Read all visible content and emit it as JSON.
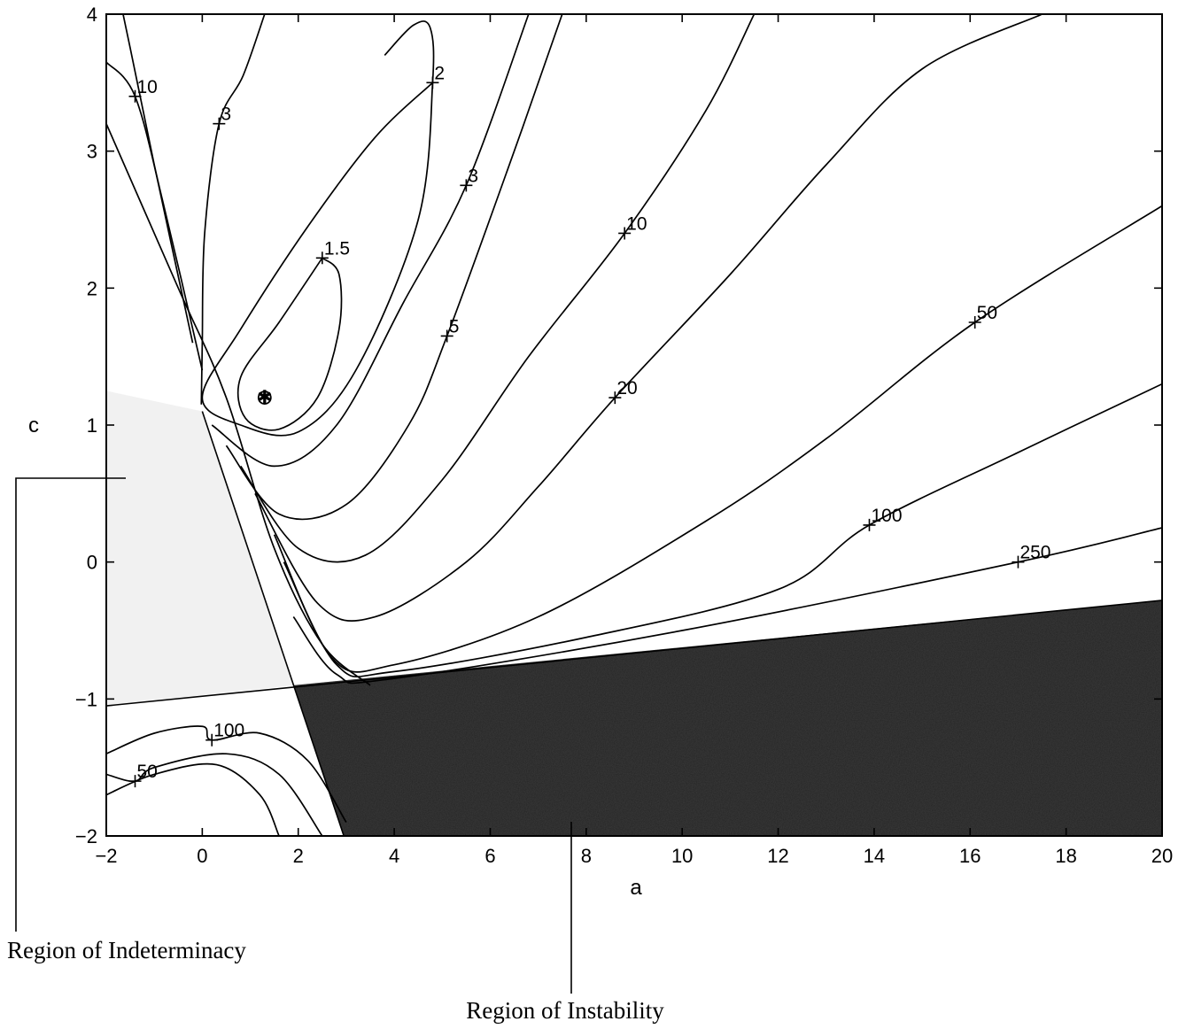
{
  "chart_data": {
    "type": "contour",
    "xlabel": "a",
    "ylabel": "c",
    "xlim": [
      -2,
      20
    ],
    "ylim": [
      -2,
      4
    ],
    "x_ticks": [
      "−2",
      "0",
      "2",
      "4",
      "6",
      "8",
      "10",
      "12",
      "14",
      "16",
      "18",
      "20"
    ],
    "y_ticks": [
      "−2",
      "−1",
      "0",
      "1",
      "2",
      "3",
      "4"
    ],
    "optimum_marker": {
      "a": 1.3,
      "c": 1.2
    },
    "contour_labels": [
      {
        "text": "10",
        "a": -1.4,
        "c": 3.4
      },
      {
        "text": "3",
        "a": 0.35,
        "c": 3.2
      },
      {
        "text": "2",
        "a": 4.8,
        "c": 3.5
      },
      {
        "text": "3",
        "a": 5.5,
        "c": 2.75
      },
      {
        "text": "1.5",
        "a": 2.5,
        "c": 2.22
      },
      {
        "text": "10",
        "a": 8.8,
        "c": 2.4
      },
      {
        "text": "5",
        "a": 5.1,
        "c": 1.65
      },
      {
        "text": "20",
        "a": 8.6,
        "c": 1.2
      },
      {
        "text": "50",
        "a": 16.1,
        "c": 1.75
      },
      {
        "text": "100",
        "a": 13.9,
        "c": 0.27
      },
      {
        "text": "250",
        "a": 17.0,
        "c": 0.0
      },
      {
        "text": "100",
        "a": 0.2,
        "c": -1.3
      },
      {
        "text": "50",
        "a": -1.4,
        "c": -1.6
      }
    ],
    "contours": [
      [
        [
          2.5,
          2.22
        ],
        [
          1.6,
          1.75
        ],
        [
          0.8,
          1.35
        ],
        [
          0.9,
          1.05
        ],
        [
          1.6,
          0.97
        ],
        [
          2.4,
          1.2
        ],
        [
          2.85,
          1.7
        ],
        [
          2.85,
          2.1
        ],
        [
          2.5,
          2.22
        ]
      ],
      [
        [
          4.8,
          3.5
        ],
        [
          3.6,
          3.1
        ],
        [
          2.2,
          2.45
        ],
        [
          0.8,
          1.7
        ],
        [
          0.0,
          1.2
        ],
        [
          0.8,
          1.0
        ],
        [
          2.0,
          0.95
        ],
        [
          3.2,
          1.4
        ],
        [
          4.5,
          2.5
        ],
        [
          4.8,
          3.5
        ],
        [
          4.75,
          3.9
        ],
        [
          4.4,
          3.92
        ],
        [
          3.8,
          3.7
        ]
      ],
      [
        [
          1.3,
          4
        ],
        [
          0.85,
          3.55
        ],
        [
          0.35,
          3.2
        ],
        [
          0.05,
          2.4
        ],
        [
          0.0,
          1.6
        ],
        [
          -0.02,
          1.15
        ]
      ],
      [
        [
          0.2,
          1.0
        ],
        [
          1.5,
          0.7
        ],
        [
          2.8,
          1.0
        ],
        [
          4.2,
          1.9
        ],
        [
          5.5,
          2.75
        ],
        [
          6.8,
          4
        ]
      ],
      [
        [
          0.5,
          0.85
        ],
        [
          1.6,
          0.35
        ],
        [
          3.0,
          0.42
        ],
        [
          4.3,
          1.0
        ],
        [
          5.1,
          1.65
        ],
        [
          6.5,
          3
        ],
        [
          7.5,
          4
        ]
      ],
      [
        [
          0.8,
          0.7
        ],
        [
          2.0,
          0.1
        ],
        [
          3.4,
          0.05
        ],
        [
          5.0,
          0.6
        ],
        [
          6.8,
          1.5
        ],
        [
          8.8,
          2.4
        ],
        [
          10.5,
          3.3
        ],
        [
          11.5,
          4
        ]
      ],
      [
        [
          1.1,
          0.5
        ],
        [
          2.4,
          -0.3
        ],
        [
          3.6,
          -0.4
        ],
        [
          5.5,
          0.0
        ],
        [
          7.0,
          0.55
        ],
        [
          8.6,
          1.2
        ],
        [
          11.0,
          2.1
        ],
        [
          13.0,
          2.9
        ],
        [
          15.0,
          3.6
        ],
        [
          17.5,
          4
        ]
      ],
      [
        [
          1.5,
          0.2
        ],
        [
          2.7,
          -0.7
        ],
        [
          4.0,
          -0.75
        ],
        [
          7.0,
          -0.4
        ],
        [
          10.5,
          0.3
        ],
        [
          13.0,
          0.9
        ],
        [
          16.1,
          1.75
        ],
        [
          20,
          2.6
        ]
      ],
      [
        [
          1.7,
          0.0
        ],
        [
          2.8,
          -0.75
        ],
        [
          4.0,
          -0.8
        ],
        [
          8.0,
          -0.55
        ],
        [
          12.0,
          -0.2
        ],
        [
          13.9,
          0.27
        ],
        [
          17.0,
          0.8
        ],
        [
          20,
          1.3
        ]
      ],
      [
        [
          1.9,
          -0.4
        ],
        [
          2.8,
          -0.82
        ],
        [
          4.0,
          -0.85
        ],
        [
          10.0,
          -0.5
        ],
        [
          17.0,
          0.0
        ],
        [
          20,
          0.25
        ]
      ],
      [
        [
          -2,
          3.2
        ],
        [
          -0.5,
          2.0
        ],
        [
          0.5,
          1.2
        ],
        [
          1.5,
          0.1
        ],
        [
          2.5,
          -0.6
        ],
        [
          3.5,
          -0.9
        ]
      ],
      [
        [
          -2,
          3.65
        ],
        [
          -1.4,
          3.4
        ],
        [
          -0.8,
          2.6
        ],
        [
          0.0,
          1.4
        ]
      ],
      [
        [
          -1.65,
          4
        ],
        [
          -1.5,
          3.75
        ],
        [
          -1.0,
          2.9
        ],
        [
          -0.2,
          1.6
        ]
      ],
      [
        [
          -2,
          -1.4
        ],
        [
          -1.0,
          -1.25
        ],
        [
          0.0,
          -1.2
        ],
        [
          0.2,
          -1.3
        ],
        [
          1.2,
          -1.25
        ],
        [
          2.2,
          -1.45
        ],
        [
          3.0,
          -1.9
        ]
      ],
      [
        [
          -2,
          -1.55
        ],
        [
          -1.4,
          -1.6
        ],
        [
          -1.0,
          -1.5
        ],
        [
          0.5,
          -1.4
        ],
        [
          1.6,
          -1.55
        ],
        [
          2.5,
          -2.0
        ]
      ],
      [
        [
          -2,
          -1.7
        ],
        [
          -1.0,
          -1.55
        ],
        [
          0.3,
          -1.48
        ],
        [
          1.2,
          -1.7
        ],
        [
          1.6,
          -2.0
        ]
      ]
    ],
    "annotations": [
      "Region of Indeterminacy",
      "Region of Instability"
    ]
  },
  "colors": {
    "instability_fill": "#3a3a3a",
    "indeterminacy_fill": "#e6e6e6",
    "line": "#000000"
  }
}
